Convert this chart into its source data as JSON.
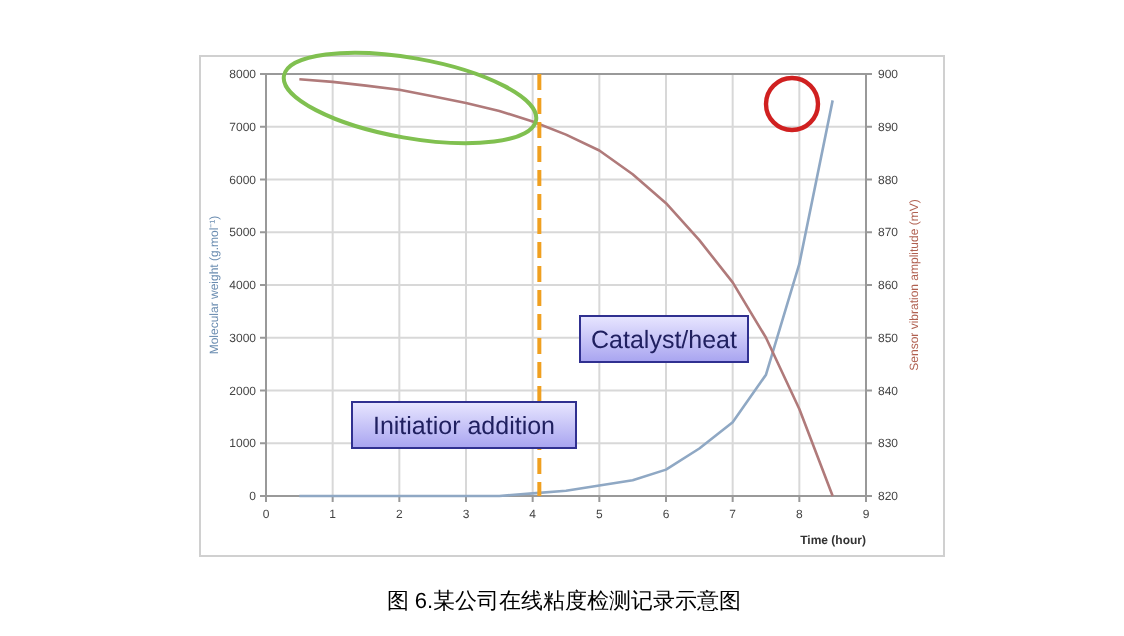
{
  "chart_data": {
    "type": "line",
    "xlabel": "Time (hour)",
    "ylabel": "Molecular weight (g.mol⁻¹)",
    "y2label": "Sensor vibration amplitude (mV)",
    "x": [
      0.5,
      1,
      1.5,
      2,
      2.5,
      3,
      3.5,
      4,
      4.5,
      5,
      5.5,
      6,
      6.5,
      7,
      7.5,
      8,
      8.5
    ],
    "series": [
      {
        "color": "#8fa8c4",
        "values": [
          0,
          0,
          0,
          0,
          0,
          0,
          0,
          50,
          100,
          200,
          300,
          500,
          900,
          1400,
          2300,
          4400,
          7500
        ]
      },
      {
        "color": "#b07a7a",
        "axis": "y2",
        "values": [
          899,
          898.5,
          897.8,
          897,
          895.8,
          894.5,
          893,
          891,
          888.5,
          885.5,
          881,
          875.5,
          868.5,
          860.5,
          850,
          836.5,
          820
        ]
      }
    ],
    "xlim": [
      0,
      9
    ],
    "xticks": [
      0,
      1,
      2,
      3,
      4,
      5,
      6,
      7,
      8,
      9
    ],
    "ylim": [
      0,
      8000
    ],
    "yticks": [
      0,
      1000,
      2000,
      3000,
      4000,
      5000,
      6000,
      7000,
      8000
    ],
    "y2lim": [
      820,
      900
    ],
    "y2ticks": [
      820,
      830,
      840,
      850,
      860,
      870,
      880,
      890,
      900
    ],
    "ref_lines": [
      {
        "axis": "x",
        "value": 4.1,
        "color": "#f0a020",
        "line_style": "dashed"
      }
    ],
    "annotations": [
      "Initiatior addition",
      "Catalyst/heat",
      "图 6.某公司在线粘度检测记录示意图"
    ],
    "grid": true,
    "marker": "none",
    "line_style": "solid"
  }
}
